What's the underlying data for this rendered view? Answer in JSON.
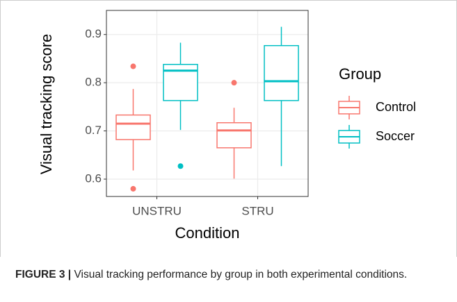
{
  "chart_data": {
    "type": "boxplot",
    "xlabel": "Condition",
    "ylabel": "Visual tracking score",
    "categories": [
      "UNSTRU",
      "STRU"
    ],
    "ylim": [
      0.564,
      0.95
    ],
    "yticks": [
      0.6,
      0.7,
      0.8,
      0.9
    ],
    "grid": true,
    "legend_title": "Group",
    "legend": "right",
    "series": [
      {
        "name": "Control",
        "color": "#F8766D",
        "whisker_low": [
          0.618,
          0.601
        ],
        "q1": [
          0.682,
          0.665
        ],
        "median": [
          0.715,
          0.701
        ],
        "q3": [
          0.733,
          0.717
        ],
        "whisker_high": [
          0.787,
          0.748
        ],
        "outliers": [
          [
            0.834,
            0.58
          ],
          [
            0.8
          ]
        ]
      },
      {
        "name": "Soccer",
        "color": "#00BFC4",
        "whisker_low": [
          0.702,
          0.627
        ],
        "q1": [
          0.763,
          0.763
        ],
        "median": [
          0.825,
          0.803
        ],
        "q3": [
          0.838,
          0.877
        ],
        "whisker_high": [
          0.883,
          0.916
        ],
        "outliers": [
          [
            0.627
          ],
          []
        ]
      }
    ]
  },
  "caption": {
    "label": "FIGURE 3 |",
    "text": " Visual tracking performance by group in both experimental conditions."
  }
}
